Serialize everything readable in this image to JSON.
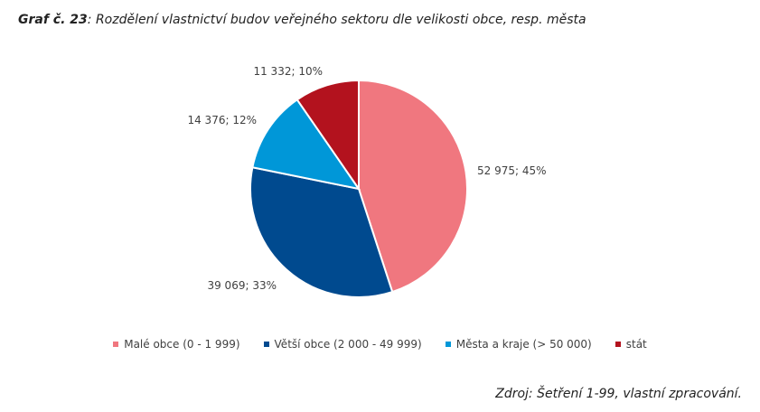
{
  "title": {
    "prefix": "Graf č. 23",
    "text": ": Rozdělení vlastnictví budov veřejného sektoru dle velikosti obce, resp. města"
  },
  "source": "Zdroj: Šetření 1-99, vlastní zpracování.",
  "chart_data": {
    "type": "pie",
    "categories": [
      "Malé obce (0 - 1 999)",
      "Větší obce (2 000 - 49 999)",
      "Města a kraje (> 50 000)",
      "stát"
    ],
    "values": [
      52975,
      39069,
      14376,
      11332
    ],
    "data_labels": [
      "52 975; 45%",
      "39 069; 33%",
      "14 376; 12%",
      "11 332; 10%"
    ],
    "colors": [
      "#f0777f",
      "#004a8f",
      "#0097d8",
      "#b3121e"
    ],
    "legend_position": "bottom"
  }
}
